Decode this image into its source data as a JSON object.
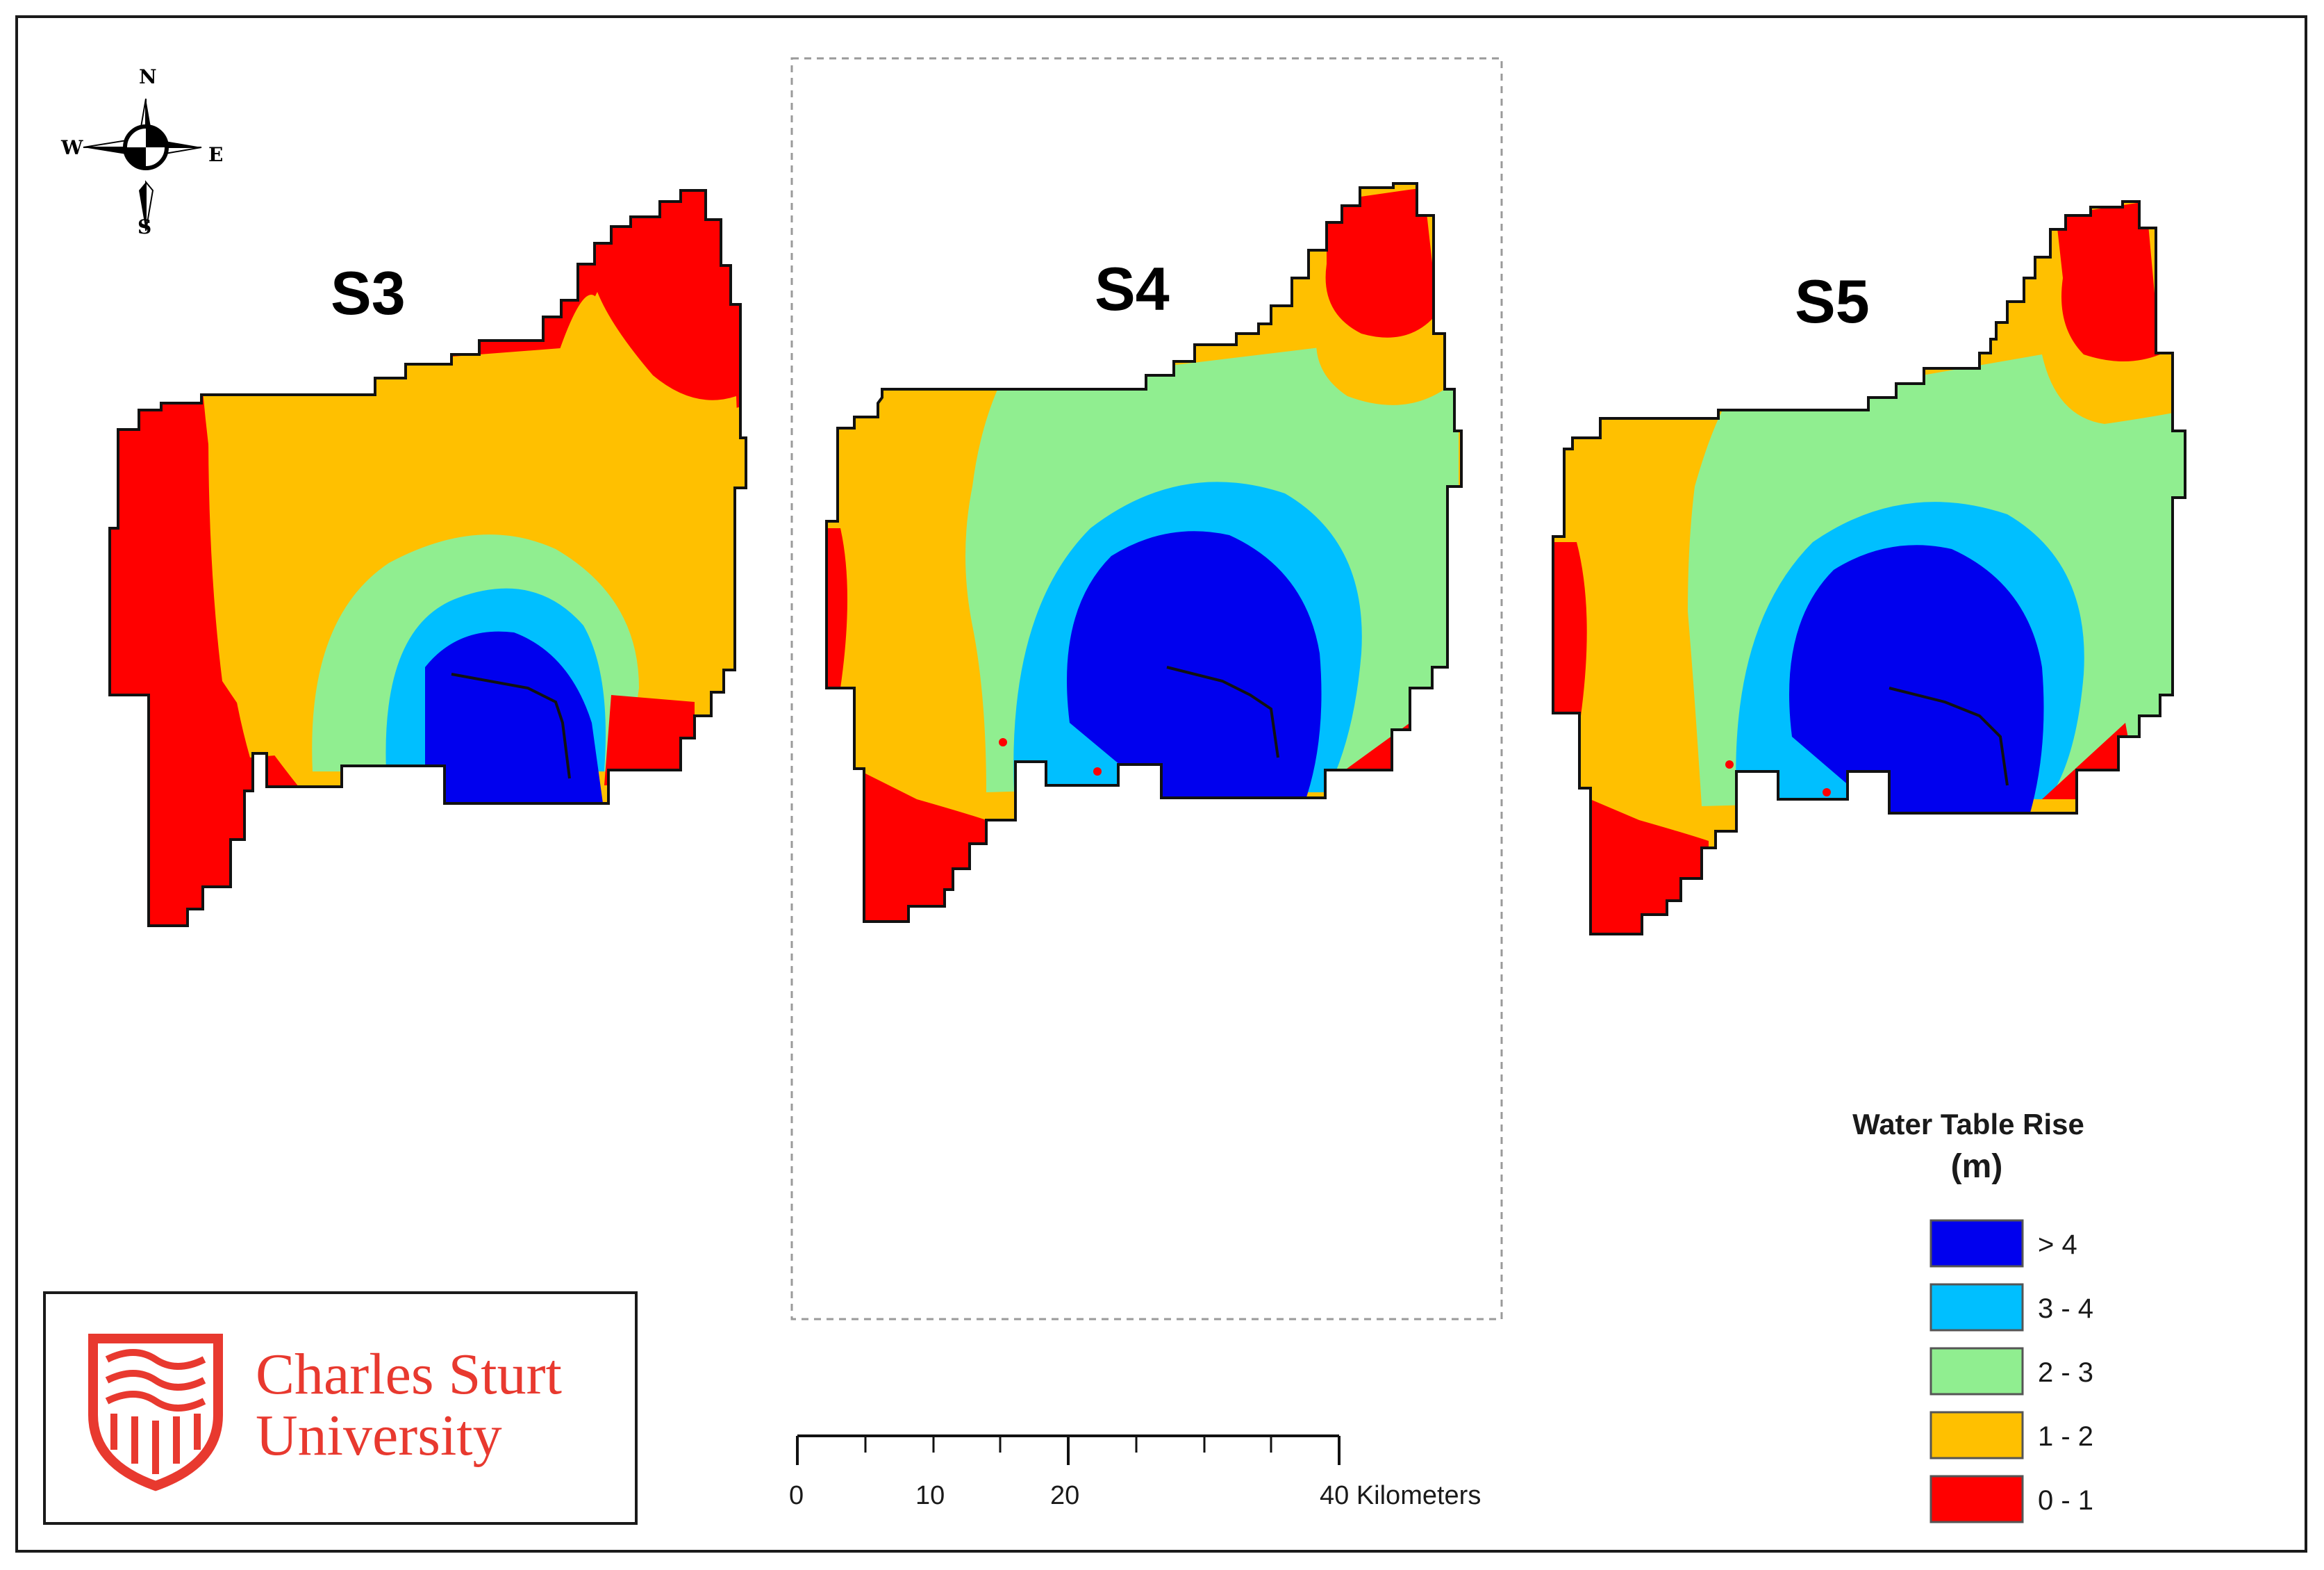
{
  "compass": {
    "north": "N",
    "south": "S",
    "east": "E",
    "west": "W"
  },
  "panels": [
    {
      "label": "S3"
    },
    {
      "label": "S4"
    },
    {
      "label": "S5"
    }
  ],
  "legend": {
    "title": "Water Table Rise",
    "unit": "(m)",
    "classes": [
      {
        "label": "> 4",
        "color": "#0000ee"
      },
      {
        "label": "3 - 4",
        "color": "#00bfff"
      },
      {
        "label": "2 - 3",
        "color": "#90ee90"
      },
      {
        "label": "1 - 2",
        "color": "#ffc000"
      },
      {
        "label": "0 - 1",
        "color": "#ff0000"
      }
    ]
  },
  "scale_bar": {
    "labels": [
      "0",
      "10",
      "20",
      "40 Kilometers"
    ]
  },
  "logo": {
    "line1": "Charles Sturt",
    "line2": "University",
    "color": "#e8392f"
  }
}
